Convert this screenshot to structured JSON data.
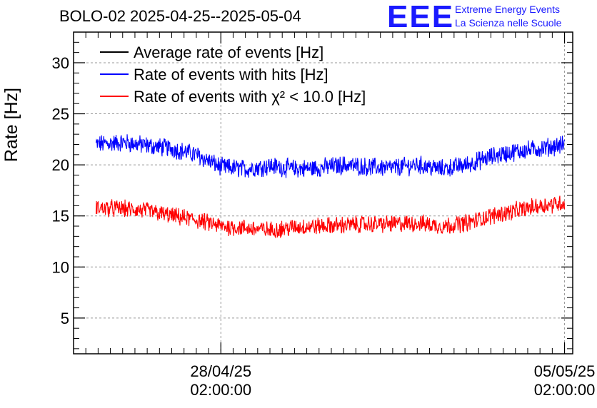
{
  "title": "BOLO-02 2025-04-25--2025-05-04",
  "logo": {
    "mark": "EEE",
    "line1": "Extreme Energy Events",
    "line2": "La Scienza nelle Scuole",
    "color": "#1a1aff"
  },
  "chart_data": {
    "type": "line",
    "ylabel": "Rate [Hz]",
    "ylim": [
      1.5,
      33
    ],
    "yticks": [
      5,
      10,
      15,
      20,
      25,
      30
    ],
    "xlim": [
      "2025-04-25T02:00:00",
      "2025-05-05T06:00:00"
    ],
    "xticks": [
      {
        "date": "28/04/25",
        "time": "02:00:00",
        "value": "2025-04-28T02:00:00"
      },
      {
        "date": "05/05/25",
        "time": "02:00:00",
        "value": "2025-05-05T02:00:00"
      }
    ],
    "grid": true,
    "legend_position": "top-left",
    "series": [
      {
        "name": "Average rate of events [Hz]",
        "color": "#000000",
        "x": [],
        "y": []
      },
      {
        "name": "Rate of events with hits [Hz]",
        "color": "#0000ff",
        "noise_amplitude": 0.8,
        "x": [
          "2025-04-25T13:00:00",
          "2025-04-26T02:00:00",
          "2025-04-26T14:00:00",
          "2025-04-27T02:00:00",
          "2025-04-27T14:00:00",
          "2025-04-28T02:00:00",
          "2025-04-28T14:00:00",
          "2025-04-29T02:00:00",
          "2025-04-29T14:00:00",
          "2025-04-30T02:00:00",
          "2025-04-30T14:00:00",
          "2025-05-01T02:00:00",
          "2025-05-01T14:00:00",
          "2025-05-02T02:00:00",
          "2025-05-02T14:00:00",
          "2025-05-03T02:00:00",
          "2025-05-03T14:00:00",
          "2025-05-04T02:00:00",
          "2025-05-04T14:00:00",
          "2025-05-05T02:00:00"
        ],
        "y": [
          22.0,
          22.2,
          21.9,
          21.6,
          21.0,
          19.8,
          19.6,
          19.9,
          19.6,
          19.7,
          20.0,
          19.8,
          19.7,
          20.0,
          19.6,
          20.0,
          20.8,
          21.3,
          21.6,
          22.0
        ]
      },
      {
        "name": "Rate of events with χ² < 10.0 [Hz]",
        "color": "#ff0000",
        "noise_amplitude": 0.75,
        "x": [
          "2025-04-25T13:00:00",
          "2025-04-26T02:00:00",
          "2025-04-26T14:00:00",
          "2025-04-27T02:00:00",
          "2025-04-27T14:00:00",
          "2025-04-28T02:00:00",
          "2025-04-28T14:00:00",
          "2025-04-29T02:00:00",
          "2025-04-29T14:00:00",
          "2025-04-30T02:00:00",
          "2025-04-30T14:00:00",
          "2025-05-01T02:00:00",
          "2025-05-01T14:00:00",
          "2025-05-02T02:00:00",
          "2025-05-02T14:00:00",
          "2025-05-03T02:00:00",
          "2025-05-03T14:00:00",
          "2025-05-04T02:00:00",
          "2025-05-04T14:00:00",
          "2025-05-05T02:00:00"
        ],
        "y": [
          15.8,
          15.7,
          15.5,
          15.0,
          14.6,
          14.0,
          13.8,
          13.6,
          13.9,
          14.0,
          14.1,
          14.2,
          14.2,
          14.3,
          14.0,
          14.3,
          15.0,
          15.5,
          16.0,
          16.3
        ]
      }
    ]
  }
}
